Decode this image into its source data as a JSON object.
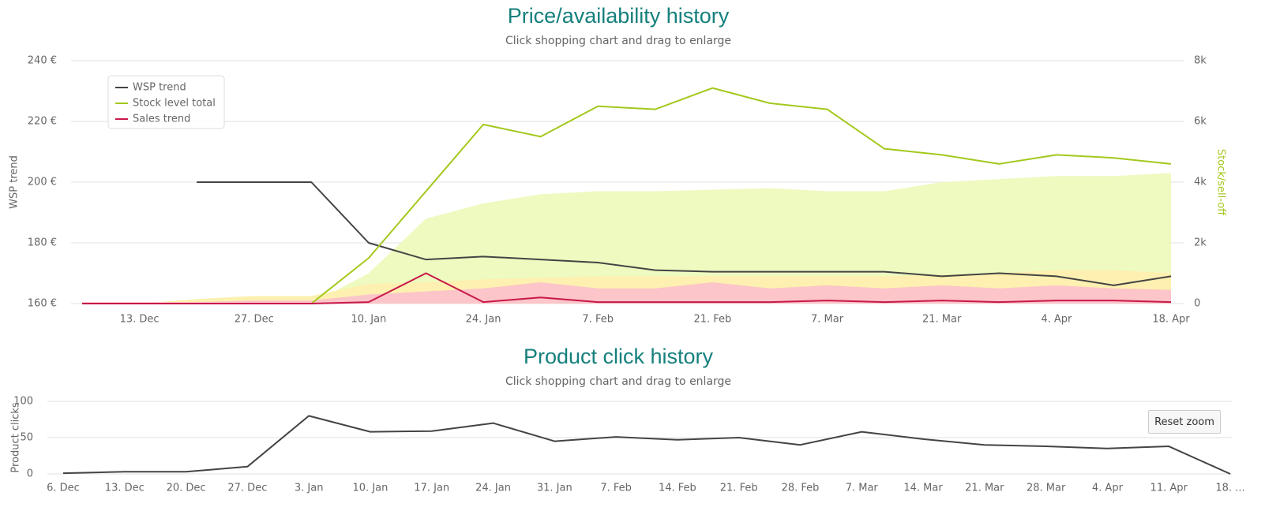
{
  "chart_data": [
    {
      "type": "line",
      "title": "Price/availability history",
      "subtitle": "Click shopping chart and drag to enlarge",
      "y_label": "WSP trend",
      "y2_label": "Stock/sell-off",
      "categories": [
        "6. Dec",
        "13. Dec",
        "20. Dec",
        "27. Dec",
        "3. Jan",
        "10. Jan",
        "17. Jan",
        "24. Jan",
        "31. Jan",
        "7. Feb",
        "14. Feb",
        "21. Feb",
        "28. Feb",
        "7. Mar",
        "14. Mar",
        "21. Mar",
        "28. Mar",
        "4. Apr",
        "11. Apr",
        "18. Apr"
      ],
      "xticks": [
        "13. Dec",
        "27. Dec",
        "10. Jan",
        "24. Jan",
        "7. Feb",
        "21. Feb",
        "7. Mar",
        "21. Mar",
        "4. Apr",
        "18. Apr"
      ],
      "ylim": [
        160,
        240
      ],
      "yticks": [
        {
          "value": 160,
          "label": "160 €"
        },
        {
          "value": 180,
          "label": "180 €"
        },
        {
          "value": 200,
          "label": "200 €"
        },
        {
          "value": 220,
          "label": "220 €"
        },
        {
          "value": 240,
          "label": "240 €"
        }
      ],
      "y2lim": [
        0,
        8000
      ],
      "y2ticks": [
        0,
        {
          "value": 2000,
          "label": "2k"
        },
        {
          "value": 4000,
          "label": "4k"
        },
        {
          "value": 6000,
          "label": "6k"
        },
        {
          "value": 8000,
          "label": "8k"
        }
      ],
      "grid": true,
      "legend": "top-left",
      "areas": [
        {
          "color": "#eefac0",
          "values": [
            0,
            0,
            0,
            0,
            0,
            1000,
            2800,
            3300,
            3600,
            3700,
            3700,
            3750,
            3800,
            3700,
            3700,
            4000,
            4100,
            4200,
            4200,
            4300
          ]
        },
        {
          "color": "#fdf0b0",
          "values": [
            0,
            0,
            150,
            250,
            250,
            650,
            700,
            800,
            850,
            900,
            900,
            900,
            900,
            900,
            900,
            950,
            1000,
            1100,
            1100,
            1000
          ]
        },
        {
          "color": "#fcc5c9",
          "values": [
            50,
            50,
            50,
            100,
            100,
            300,
            400,
            500,
            700,
            500,
            500,
            700,
            500,
            600,
            500,
            600,
            500,
            600,
            500,
            450
          ]
        }
      ],
      "series": [
        {
          "name": "WSP trend",
          "color": "#444444",
          "values": [
            null,
            null,
            200,
            200,
            200,
            180,
            174.5,
            175.5,
            174.5,
            173.5,
            171,
            170.5,
            170.5,
            170.5,
            170.5,
            169,
            170,
            169,
            166,
            169
          ]
        },
        {
          "name": "Stock level total",
          "color": "#a3c81d",
          "axis": "y2",
          "values": [
            0,
            0,
            0,
            0,
            0,
            1500,
            3700,
            5900,
            5500,
            6500,
            6400,
            7100,
            6600,
            6400,
            5100,
            4900,
            4600,
            4900,
            4800,
            4600
          ]
        },
        {
          "name": "Sales trend",
          "color": "#c8184a",
          "axis": "y2",
          "values": [
            0,
            0,
            0,
            0,
            0,
            50,
            1000,
            50,
            200,
            50,
            50,
            50,
            50,
            100,
            50,
            100,
            50,
            100,
            100,
            50
          ]
        }
      ]
    },
    {
      "type": "line",
      "title": "Product click history",
      "subtitle": "Click shopping chart and drag to enlarge",
      "y_label": "Product clicks",
      "button": "Reset zoom",
      "categories": [
        "6. Dec",
        "13. Dec",
        "20. Dec",
        "27. Dec",
        "3. Jan",
        "10. Jan",
        "17. Jan",
        "24. Jan",
        "31. Jan",
        "7. Feb",
        "14. Feb",
        "21. Feb",
        "28. Feb",
        "7. Mar",
        "14. Mar",
        "21. Mar",
        "28. Mar",
        "4. Apr",
        "11. Apr",
        "18. ..."
      ],
      "ylim": [
        0,
        100
      ],
      "yticks": [
        0,
        50,
        100
      ],
      "grid": true,
      "series": [
        {
          "color": "#444444",
          "values": [
            1,
            3,
            3,
            10,
            80,
            58,
            59,
            70,
            45,
            51,
            47,
            50,
            40,
            58,
            48,
            40,
            38,
            35,
            38,
            0
          ]
        }
      ]
    }
  ]
}
